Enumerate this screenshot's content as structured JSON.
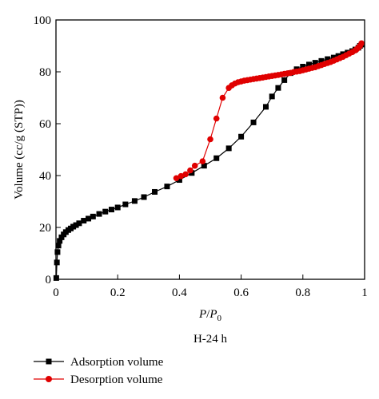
{
  "chart_data": {
    "type": "scatter",
    "title": "",
    "subtitle": "H-24 h",
    "xlabel": {
      "main": "P",
      "slash": "/",
      "sub_main": "P",
      "sub": "0"
    },
    "ylabel": "Volume (cc/g (STP))",
    "xlim": [
      0,
      1
    ],
    "ylim": [
      0,
      100
    ],
    "xticks": [
      0,
      0.2,
      0.4,
      0.6,
      0.8,
      1
    ],
    "xtick_labels": [
      "0",
      "0.2",
      "0.4",
      "0.6",
      "0.8",
      "1"
    ],
    "yticks": [
      0,
      20,
      40,
      60,
      80,
      100
    ],
    "ytick_labels": [
      "0",
      "20",
      "40",
      "60",
      "80",
      "100"
    ],
    "grid": false,
    "legend_position": "bottom-left",
    "series": [
      {
        "name": "Adsorption volume",
        "color": "#000000",
        "marker": "square",
        "x": [
          0.001,
          0.003,
          0.005,
          0.008,
          0.012,
          0.018,
          0.025,
          0.032,
          0.04,
          0.048,
          0.056,
          0.065,
          0.075,
          0.09,
          0.105,
          0.12,
          0.14,
          0.16,
          0.18,
          0.2,
          0.225,
          0.255,
          0.285,
          0.32,
          0.36,
          0.4,
          0.44,
          0.48,
          0.52,
          0.56,
          0.6,
          0.64,
          0.68,
          0.7,
          0.72,
          0.74,
          0.76,
          0.78,
          0.8,
          0.82,
          0.84,
          0.86,
          0.88,
          0.9,
          0.915,
          0.93,
          0.945,
          0.96,
          0.97,
          0.98,
          0.985,
          0.99
        ],
        "y": [
          0.5,
          6.5,
          10.5,
          13.0,
          14.8,
          16.2,
          17.3,
          18.2,
          19.0,
          19.6,
          20.3,
          20.9,
          21.6,
          22.6,
          23.4,
          24.2,
          25.2,
          26.1,
          26.9,
          27.7,
          28.9,
          30.2,
          31.7,
          33.7,
          35.8,
          38.3,
          41.0,
          43.8,
          46.7,
          50.5,
          55.0,
          60.5,
          66.5,
          70.5,
          73.8,
          76.8,
          79.5,
          81.0,
          82.0,
          82.8,
          83.5,
          84.2,
          84.9,
          85.5,
          86.1,
          86.8,
          87.4,
          88.0,
          88.6,
          89.3,
          90.0,
          90.5
        ]
      },
      {
        "name": "Desorption volume",
        "color": "#e00000",
        "marker": "circle",
        "x": [
          0.99,
          0.985,
          0.98,
          0.975,
          0.97,
          0.96,
          0.95,
          0.94,
          0.93,
          0.92,
          0.91,
          0.9,
          0.89,
          0.88,
          0.87,
          0.86,
          0.85,
          0.84,
          0.83,
          0.82,
          0.81,
          0.8,
          0.79,
          0.78,
          0.77,
          0.76,
          0.75,
          0.74,
          0.73,
          0.72,
          0.71,
          0.7,
          0.69,
          0.68,
          0.67,
          0.66,
          0.65,
          0.64,
          0.63,
          0.62,
          0.61,
          0.6,
          0.59,
          0.58,
          0.57,
          0.56,
          0.54,
          0.52,
          0.5,
          0.475,
          0.45,
          0.435,
          0.42,
          0.405,
          0.39
        ],
        "y": [
          91.0,
          90.0,
          89.3,
          88.8,
          88.3,
          87.6,
          87.0,
          86.4,
          85.8,
          85.3,
          84.8,
          84.3,
          83.8,
          83.4,
          83.0,
          82.6,
          82.2,
          81.8,
          81.5,
          81.2,
          80.9,
          80.6,
          80.3,
          80.1,
          79.9,
          79.6,
          79.4,
          79.2,
          79.0,
          78.8,
          78.6,
          78.4,
          78.2,
          78.0,
          77.8,
          77.6,
          77.4,
          77.2,
          77.0,
          76.8,
          76.6,
          76.3,
          76.0,
          75.5,
          74.8,
          73.8,
          70.0,
          62.0,
          54.0,
          45.5,
          43.8,
          42.0,
          40.5,
          39.8,
          39.0
        ]
      }
    ]
  }
}
